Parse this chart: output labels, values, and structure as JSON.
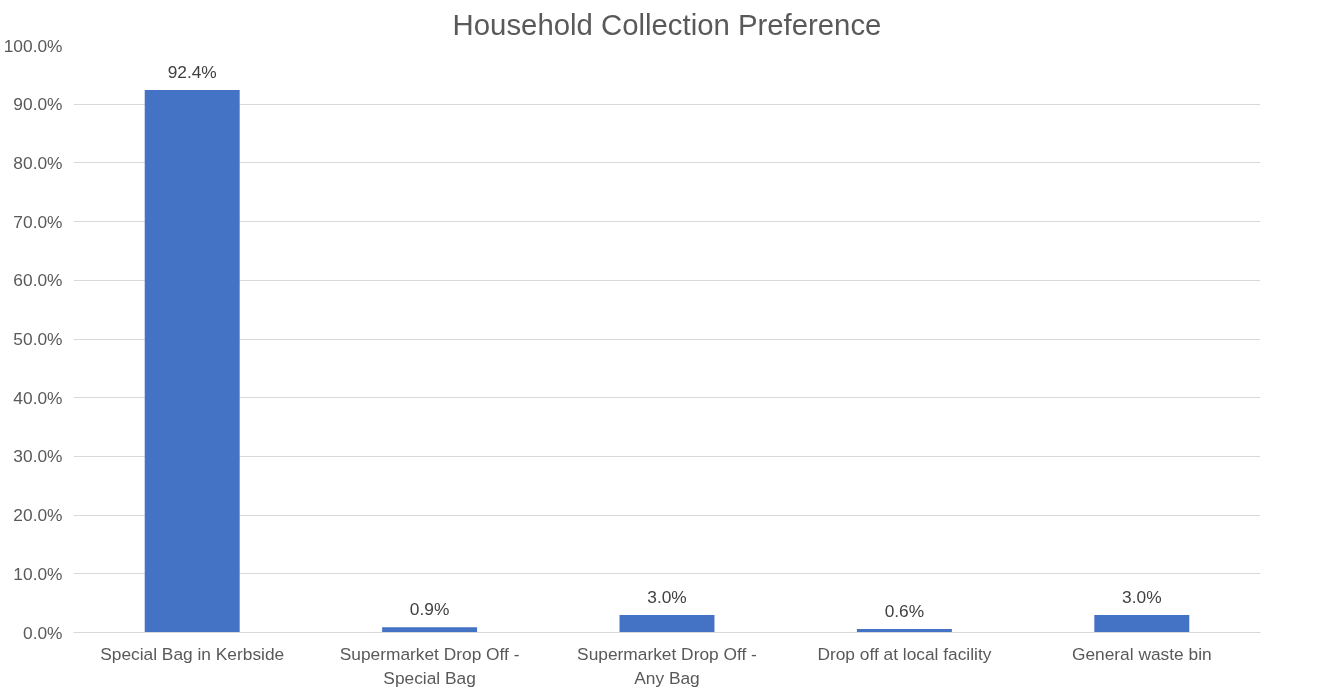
{
  "chart_data": {
    "type": "bar",
    "title": "Household Collection Preference",
    "categories": [
      "Special Bag in Kerbside",
      "Supermarket Drop Off - Special Bag",
      "Supermarket Drop Off - Any Bag",
      "Drop off at local facility",
      "General waste bin"
    ],
    "values": [
      92.4,
      0.9,
      3.0,
      0.6,
      3.0
    ],
    "value_labels": [
      "92.4%",
      "0.9%",
      "3.0%",
      "0.6%",
      "3.0%"
    ],
    "color": "#4472c4",
    "ylim": [
      0,
      100
    ],
    "yticks": [
      {
        "value": 0,
        "label": "0.0%"
      },
      {
        "value": 10,
        "label": "10.0%"
      },
      {
        "value": 20,
        "label": "20.0%"
      },
      {
        "value": 30,
        "label": "30.0%"
      },
      {
        "value": 40,
        "label": "40.0%"
      },
      {
        "value": 50,
        "label": "50.0%"
      },
      {
        "value": 60,
        "label": "60.0%"
      },
      {
        "value": 70,
        "label": "70.0%"
      },
      {
        "value": 80,
        "label": "80.0%"
      },
      {
        "value": 90,
        "label": "90.0%"
      },
      {
        "value": 100,
        "label": "100.0%"
      }
    ],
    "grid": "y"
  }
}
